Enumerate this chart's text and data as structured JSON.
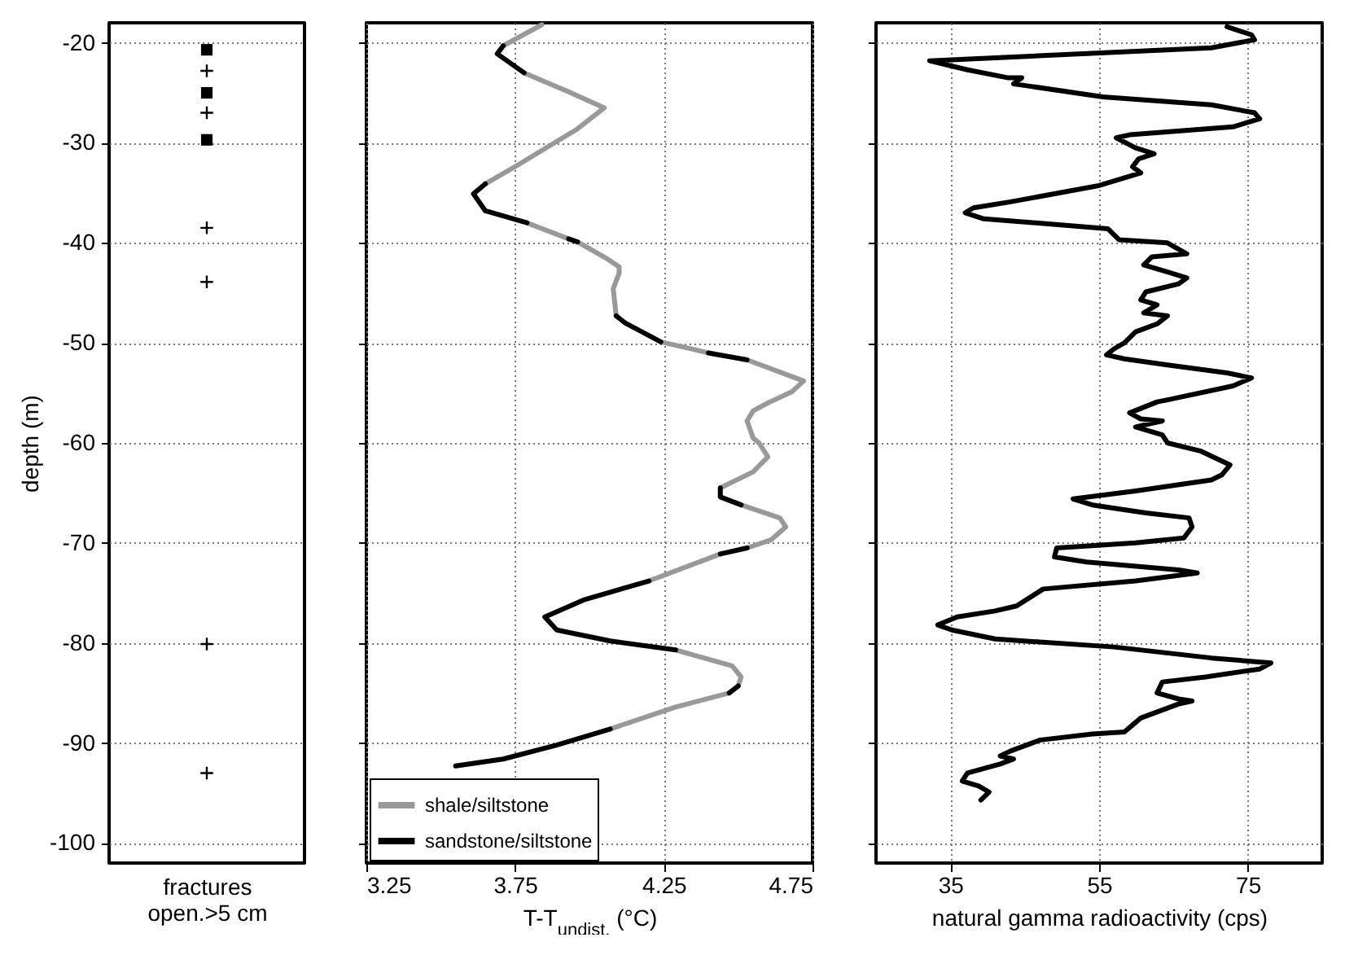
{
  "chart_data": [
    {
      "type": "scatter",
      "xlabel": "fractures\nopen.>5 cm",
      "ylabel": "depth (m)",
      "categories": [
        null
      ],
      "ylim": [
        -102,
        -18
      ],
      "yticks": [
        -100,
        -90,
        -80,
        -70,
        -60,
        -50,
        -40,
        -30,
        -20
      ],
      "grid": "y",
      "tick_labels": "y",
      "legend": false,
      "series": [
        {
          "marker": "square",
          "color": "#000000",
          "x": [
            null,
            null,
            null
          ],
          "values": [
            -20.7,
            -25.0,
            -29.7
          ]
        },
        {
          "marker": "cross",
          "color": "#000000",
          "x": [
            null,
            null,
            null,
            null,
            null,
            null,
            null
          ],
          "values": [
            -22.8,
            null,
            -27.0,
            -38.5,
            -43.9,
            -80.1,
            -93.0
          ]
        }
      ]
    },
    {
      "type": "line",
      "xlabel": "T-T$_{undist.}$ (°C)",
      "xlim": [
        3.25,
        4.75
      ],
      "xticks": [
        3.25,
        3.75,
        4.25,
        4.75
      ],
      "ylim": [
        -102,
        -18
      ],
      "yticks": [
        -100,
        -90,
        -80,
        -70,
        -60,
        -50,
        -40,
        -30,
        -20
      ],
      "grid": true,
      "tick_labels": "x",
      "legend": "bottom left",
      "line_style": "solid",
      "series": [
        {
          "name": "shale/siltstone",
          "color": "#999999",
          "x": [
            3.84,
            3.71,
            null,
            3.78,
            3.93,
            4.05,
            3.96,
            3.76,
            3.65,
            null,
            3.79,
            3.93,
            null,
            3.96,
            4.06,
            4.1,
            4.1,
            4.08,
            4.09,
            null,
            4.24,
            4.4,
            null,
            4.53,
            4.72,
            4.68,
            4.6,
            4.55,
            4.53,
            4.55,
            4.57,
            4.6,
            4.55,
            4.44,
            null,
            4.51,
            4.64,
            4.66,
            4.61,
            4.53,
            null,
            4.44,
            4.2,
            null,
            4.29,
            4.48,
            4.51,
            4.5,
            null,
            4.47,
            4.29,
            4.07
          ],
          "values": [
            -18.2,
            -20.3,
            null,
            -23.0,
            -24.9,
            -26.5,
            -28.6,
            -32.2,
            -34.1,
            null,
            -38.0,
            -39.6,
            null,
            -39.9,
            -41.6,
            -42.4,
            -43.0,
            -44.6,
            -47.3,
            null,
            -49.9,
            -51.0,
            null,
            -51.7,
            -53.8,
            -54.9,
            -56.0,
            -56.8,
            -57.8,
            -59.5,
            -60.0,
            -61.4,
            -62.9,
            -64.5,
            null,
            -66.2,
            -67.5,
            -68.4,
            -69.7,
            -70.5,
            null,
            -71.1,
            -73.8,
            null,
            -80.7,
            -82.3,
            -83.4,
            -84.3,
            null,
            -85.0,
            -86.4,
            -88.6
          ]
        },
        {
          "name": "sandstone/siltstone",
          "color": "#000000",
          "x": [
            3.71,
            3.69,
            3.78,
            null,
            3.65,
            3.61,
            3.65,
            3.79,
            null,
            3.93,
            3.96,
            null,
            4.09,
            4.12,
            4.24,
            null,
            4.4,
            4.53,
            null,
            4.44,
            4.44,
            4.51,
            null,
            4.53,
            4.44,
            null,
            4.2,
            3.98,
            3.85,
            3.89,
            4.07,
            4.29,
            null,
            4.5,
            4.47,
            null,
            4.07,
            3.89,
            3.71,
            3.55
          ],
          "values": [
            -20.3,
            -21.1,
            -23.0,
            null,
            -34.1,
            -35.1,
            -36.8,
            -38.0,
            null,
            -39.6,
            -39.9,
            null,
            -47.3,
            -48.0,
            -49.9,
            null,
            -51.0,
            -51.7,
            null,
            -64.5,
            -65.4,
            -66.2,
            null,
            -70.5,
            -71.1,
            null,
            -73.8,
            -75.7,
            -77.4,
            -78.7,
            -79.8,
            -80.7,
            null,
            -84.3,
            -85.0,
            null,
            -88.6,
            -90.2,
            -91.6,
            -92.3
          ]
        }
      ]
    },
    {
      "type": "line",
      "xlabel": "natural gamma radioactivity (cps)",
      "xlim": [
        25,
        85
      ],
      "xticks": [
        35,
        55,
        75
      ],
      "ylim": [
        -102,
        -18
      ],
      "yticks": [
        -100,
        -90,
        -80,
        -70,
        -60,
        -50,
        -40,
        -30,
        -20
      ],
      "grid": true,
      "tick_labels": "x",
      "legend": false,
      "line_style": "solid",
      "series": [
        {
          "color": "#000000",
          "x": [
            72.2,
            75.5,
            75.9,
            70.1,
            32.2,
            37.3,
            42.8,
            44.6,
            43.5,
            45.3,
            55.5,
            70.1,
            75.9,
            76.6,
            73.0,
            59.1,
            57.3,
            59.9,
            62.4,
            60.3,
            59.5,
            60.6,
            54.8,
            43.1,
            38.1,
            37.0,
            39.5,
            48.2,
            56.2,
            57.7,
            64.2,
            66.8,
            62.1,
            61.0,
            64.6,
            66.8,
            65.7,
            61.3,
            60.6,
            62.8,
            61.0,
            64.2,
            62.8,
            59.9,
            58.4,
            57.0,
            56.0,
            58.4,
            64.2,
            72.2,
            75.5,
            73.0,
            64.2,
            62.8,
            59.1,
            60.6,
            63.5,
            59.9,
            63.5,
            64.2,
            68.6,
            72.6,
            71.5,
            70.1,
            59.9,
            51.5,
            54.1,
            61.3,
            67.1,
            67.5,
            66.4,
            59.9,
            49.3,
            49.0,
            53.3,
            65.7,
            68.2,
            59.9,
            47.5,
            43.9,
            41.0,
            35.9,
            33.3,
            35.2,
            41.0,
            57.0,
            70.1,
            78.1,
            76.6,
            69.3,
            63.5,
            62.8,
            65.7,
            67.5,
            65.7,
            60.6,
            58.4,
            54.1,
            47.1,
            43.1,
            41.7,
            43.5,
            41.7,
            37.3,
            36.6,
            38.8,
            40.2,
            39.1
          ],
          "values": [
            -18.4,
            -19.2,
            -19.7,
            -20.5,
            -21.8,
            -22.7,
            -23.5,
            -23.5,
            -24.1,
            -24.3,
            -25.4,
            -26.2,
            -27.0,
            -27.6,
            -28.4,
            -29.2,
            -29.5,
            -30.5,
            -31.1,
            -31.6,
            -32.4,
            -33.0,
            -34.3,
            -35.9,
            -36.5,
            -37.0,
            -37.6,
            -38.1,
            -38.6,
            -39.7,
            -40.0,
            -41.1,
            -41.4,
            -42.2,
            -43.0,
            -43.5,
            -44.1,
            -44.9,
            -45.7,
            -46.2,
            -47.0,
            -47.3,
            -48.1,
            -48.9,
            -50.0,
            -50.6,
            -51.2,
            -51.6,
            -52.2,
            -53.0,
            -53.5,
            -54.3,
            -55.7,
            -55.9,
            -57.0,
            -57.6,
            -57.8,
            -58.4,
            -59.2,
            -60.0,
            -60.8,
            -62.2,
            -63.2,
            -63.7,
            -64.8,
            -65.6,
            -66.2,
            -67.0,
            -67.5,
            -68.4,
            -69.5,
            -70.0,
            -70.5,
            -71.4,
            -71.9,
            -72.7,
            -73.0,
            -73.8,
            -74.6,
            -76.3,
            -76.8,
            -77.4,
            -78.2,
            -78.7,
            -79.6,
            -80.4,
            -81.5,
            -82.0,
            -82.6,
            -83.4,
            -83.9,
            -85.0,
            -85.6,
            -85.8,
            -86.1,
            -87.5,
            -88.9,
            -89.1,
            -89.7,
            -90.8,
            -91.3,
            -91.6,
            -92.1,
            -93.0,
            -93.8,
            -94.3,
            -94.9,
            -95.7
          ]
        }
      ]
    }
  ]
}
